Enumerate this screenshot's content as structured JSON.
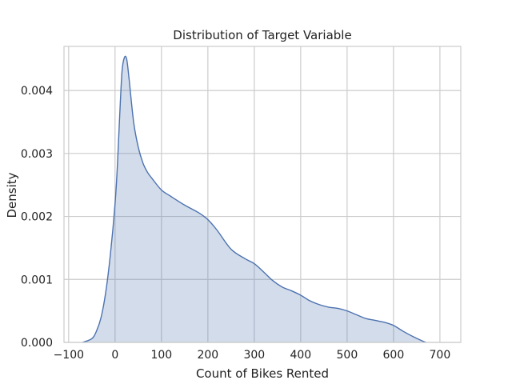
{
  "chart_data": {
    "type": "area",
    "title": "Distribution of Target Variable",
    "xlabel": "Count of Bikes Rented",
    "ylabel": "Density",
    "xlim": [
      -110,
      745
    ],
    "ylim": [
      0,
      0.0047
    ],
    "x_ticks": [
      -100,
      0,
      100,
      200,
      300,
      400,
      500,
      600,
      700
    ],
    "x_tick_labels": [
      "−100",
      "0",
      "100",
      "200",
      "300",
      "400",
      "500",
      "600",
      "700"
    ],
    "y_ticks": [
      0,
      0.001,
      0.002,
      0.003,
      0.004
    ],
    "y_tick_labels": [
      "0.000",
      "0.001",
      "0.002",
      "0.003",
      "0.004"
    ],
    "grid": true,
    "series": [
      {
        "line_color": "#4c72b0",
        "fill_color": "#4c72b0",
        "fill_opacity": 0.25,
        "points": [
          [
            -70,
            0.0
          ],
          [
            -50,
            6e-05
          ],
          [
            -40,
            0.00018
          ],
          [
            -30,
            0.0004
          ],
          [
            -20,
            0.0008
          ],
          [
            -10,
            0.0014
          ],
          [
            0,
            0.0022
          ],
          [
            5,
            0.0028
          ],
          [
            10,
            0.0036
          ],
          [
            15,
            0.0043
          ],
          [
            20,
            0.00452
          ],
          [
            25,
            0.0045
          ],
          [
            30,
            0.0042
          ],
          [
            40,
            0.0035
          ],
          [
            50,
            0.0031
          ],
          [
            60,
            0.00285
          ],
          [
            70,
            0.0027
          ],
          [
            80,
            0.0026
          ],
          [
            100,
            0.00242
          ],
          [
            120,
            0.00232
          ],
          [
            150,
            0.00218
          ],
          [
            180,
            0.00206
          ],
          [
            200,
            0.00195
          ],
          [
            220,
            0.00178
          ],
          [
            250,
            0.00148
          ],
          [
            280,
            0.00133
          ],
          [
            300,
            0.00125
          ],
          [
            320,
            0.00112
          ],
          [
            340,
            0.00098
          ],
          [
            360,
            0.00088
          ],
          [
            380,
            0.00082
          ],
          [
            400,
            0.00075
          ],
          [
            420,
            0.00066
          ],
          [
            440,
            0.0006
          ],
          [
            460,
            0.00056
          ],
          [
            480,
            0.00054
          ],
          [
            500,
            0.0005
          ],
          [
            520,
            0.00044
          ],
          [
            540,
            0.00038
          ],
          [
            560,
            0.00035
          ],
          [
            580,
            0.00032
          ],
          [
            600,
            0.00027
          ],
          [
            620,
            0.00018
          ],
          [
            640,
            0.0001
          ],
          [
            660,
            3e-05
          ],
          [
            670,
            0.0
          ]
        ]
      }
    ]
  }
}
